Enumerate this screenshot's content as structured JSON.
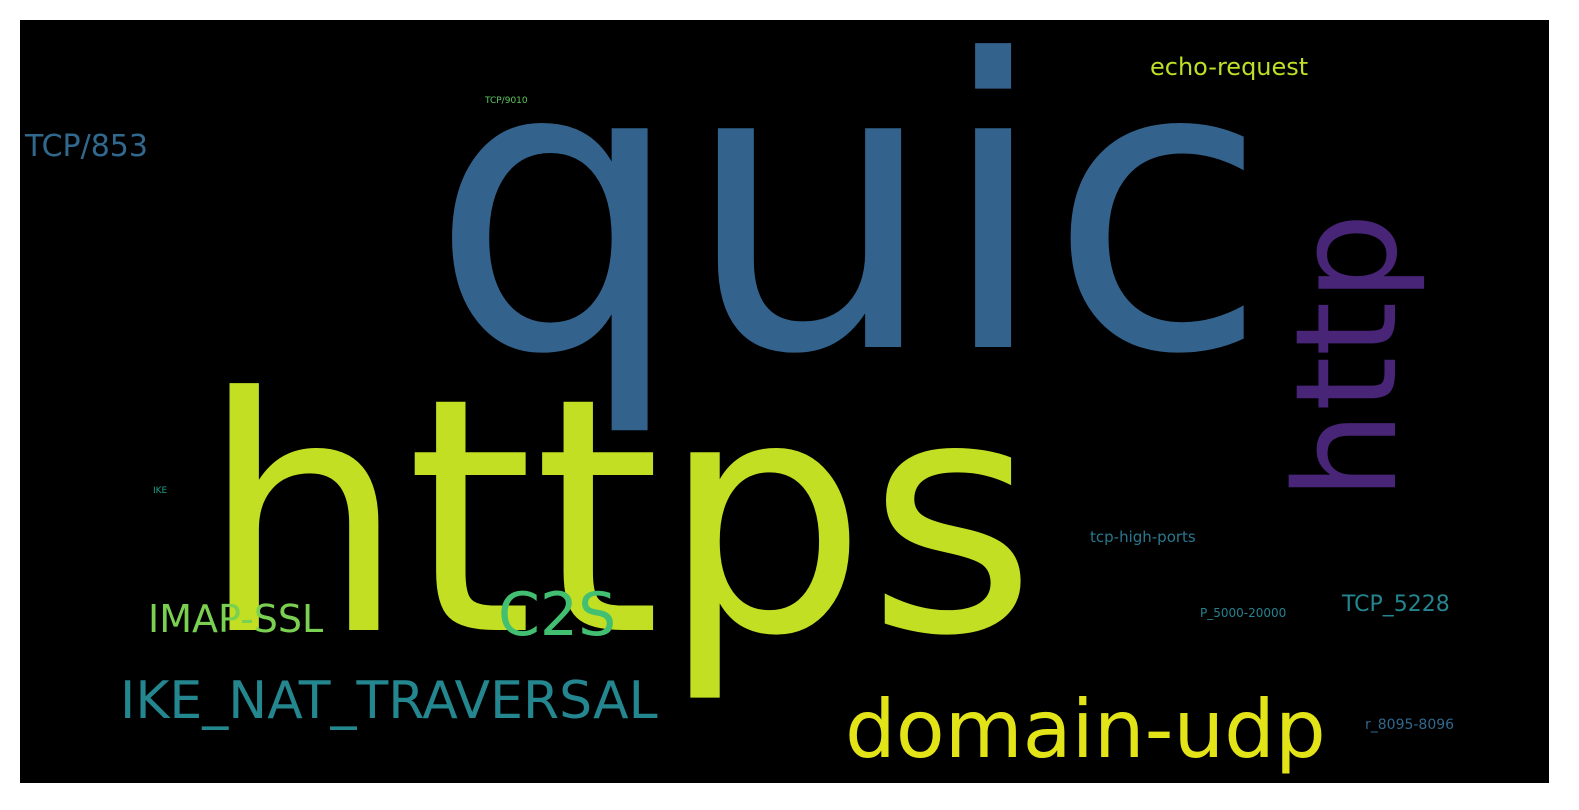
{
  "wordcloud": {
    "background": "#000000",
    "words": [
      {
        "key": "quic",
        "text": "quic",
        "color": "#33638d"
      },
      {
        "key": "https",
        "text": "https",
        "color": "#c2df23"
      },
      {
        "key": "http",
        "text": "http",
        "color": "#482576"
      },
      {
        "key": "domain_udp",
        "text": "domain-udp",
        "color": "#e2e418"
      },
      {
        "key": "ike_nat",
        "text": "IKE_NAT_TRAVERSAL",
        "color": "#24868e"
      },
      {
        "key": "c2s",
        "text": "C2S",
        "color": "#43bf71"
      },
      {
        "key": "imap",
        "text": "IMAP-SSL",
        "color": "#7ad151"
      },
      {
        "key": "echo",
        "text": "echo-request",
        "color": "#bddf26"
      },
      {
        "key": "tcp853",
        "text": "TCP/853",
        "color": "#31688e"
      },
      {
        "key": "tcp5228",
        "text": "TCP_5228",
        "color": "#25858e"
      },
      {
        "key": "tcphigh",
        "text": "tcp-high-ports",
        "color": "#2a788e"
      },
      {
        "key": "p5000",
        "text": "P_5000-20000",
        "color": "#26818e"
      },
      {
        "key": "r8095",
        "text": "r_8095-8096",
        "color": "#31688e"
      },
      {
        "key": "tcp9010",
        "text": "TCP/9010",
        "color": "#5ec962"
      },
      {
        "key": "ike",
        "text": "IKE",
        "color": "#1f9e89"
      }
    ]
  }
}
